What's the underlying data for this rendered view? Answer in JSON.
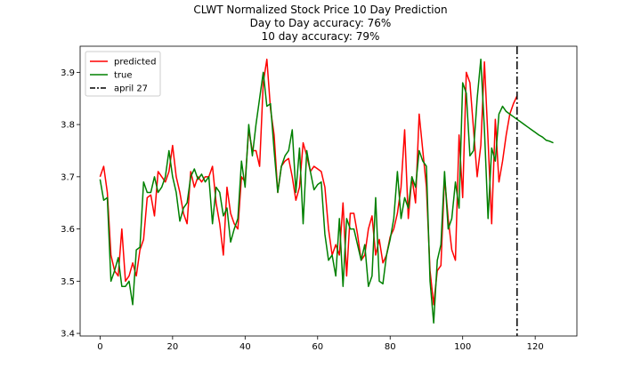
{
  "chart_data": {
    "type": "line",
    "title": "CLWT Normalized Stock Price 10 Day Prediction",
    "subtitle_lines": [
      "Day to Day accuracy: 76%",
      "10 day accuracy: 79%"
    ],
    "xlabel": "",
    "ylabel": "",
    "xlim": [
      -5.5,
      131.5
    ],
    "ylim": [
      3.395,
      3.95
    ],
    "x_ticks": [
      0,
      20,
      40,
      60,
      80,
      100,
      120
    ],
    "y_ticks": [
      3.4,
      3.5,
      3.6,
      3.7,
      3.8,
      3.9
    ],
    "y_tick_labels": [
      "3.4",
      "3.5",
      "3.6",
      "3.7",
      "3.8",
      "3.9"
    ],
    "grid": false,
    "legend_position": "top-left",
    "series": [
      {
        "name": "predicted",
        "color": "#ff0000",
        "x": [
          0,
          1,
          2,
          3,
          4,
          5,
          6,
          7,
          8,
          9,
          10,
          11,
          12,
          13,
          14,
          15,
          16,
          17,
          18,
          19,
          20,
          21,
          22,
          23,
          24,
          25,
          26,
          27,
          28,
          29,
          30,
          31,
          32,
          33,
          34,
          35,
          36,
          37,
          38,
          39,
          40,
          41,
          42,
          43,
          44,
          45,
          46,
          47,
          48,
          49,
          50,
          51,
          52,
          53,
          54,
          55,
          56,
          57,
          58,
          59,
          60,
          61,
          62,
          63,
          64,
          65,
          66,
          67,
          68,
          69,
          70,
          71,
          72,
          73,
          74,
          75,
          76,
          77,
          78,
          79,
          80,
          81,
          82,
          83,
          84,
          85,
          86,
          87,
          88,
          89,
          90,
          91,
          92,
          93,
          94,
          95,
          96,
          97,
          98,
          99,
          100,
          101,
          102,
          103,
          104,
          105,
          106,
          107,
          108,
          109,
          110,
          111,
          112,
          113,
          114,
          115
        ],
        "values": [
          3.7,
          3.72,
          3.67,
          3.55,
          3.52,
          3.51,
          3.6,
          3.5,
          3.51,
          3.535,
          3.51,
          3.56,
          3.58,
          3.66,
          3.665,
          3.625,
          3.71,
          3.7,
          3.69,
          3.71,
          3.76,
          3.7,
          3.67,
          3.63,
          3.61,
          3.71,
          3.68,
          3.7,
          3.69,
          3.7,
          3.7,
          3.72,
          3.65,
          3.61,
          3.55,
          3.68,
          3.63,
          3.61,
          3.6,
          3.7,
          3.69,
          3.79,
          3.75,
          3.75,
          3.72,
          3.88,
          3.925,
          3.83,
          3.78,
          3.67,
          3.72,
          3.73,
          3.735,
          3.7,
          3.655,
          3.68,
          3.765,
          3.74,
          3.71,
          3.72,
          3.715,
          3.71,
          3.68,
          3.6,
          3.55,
          3.57,
          3.55,
          3.65,
          3.51,
          3.63,
          3.63,
          3.59,
          3.54,
          3.55,
          3.6,
          3.625,
          3.55,
          3.58,
          3.535,
          3.55,
          3.585,
          3.6,
          3.63,
          3.68,
          3.79,
          3.62,
          3.7,
          3.65,
          3.82,
          3.75,
          3.68,
          3.52,
          3.455,
          3.52,
          3.53,
          3.7,
          3.62,
          3.56,
          3.54,
          3.78,
          3.66,
          3.9,
          3.88,
          3.79,
          3.7,
          3.76,
          3.92,
          3.77,
          3.61,
          3.81,
          3.69,
          3.73,
          3.78,
          3.82,
          3.84,
          3.855
        ]
      },
      {
        "name": "true",
        "color": "#008000",
        "x": [
          0,
          1,
          2,
          3,
          4,
          5,
          6,
          7,
          8,
          9,
          10,
          11,
          12,
          13,
          14,
          15,
          16,
          17,
          18,
          19,
          20,
          21,
          22,
          23,
          24,
          25,
          26,
          27,
          28,
          29,
          30,
          31,
          32,
          33,
          34,
          35,
          36,
          37,
          38,
          39,
          40,
          41,
          42,
          43,
          44,
          45,
          46,
          47,
          48,
          49,
          50,
          51,
          52,
          53,
          54,
          55,
          56,
          57,
          58,
          59,
          60,
          61,
          62,
          63,
          64,
          65,
          66,
          67,
          68,
          69,
          70,
          71,
          72,
          73,
          74,
          75,
          76,
          77,
          78,
          79,
          80,
          81,
          82,
          83,
          84,
          85,
          86,
          87,
          88,
          89,
          90,
          91,
          92,
          93,
          94,
          95,
          96,
          97,
          98,
          99,
          100,
          101,
          102,
          103,
          104,
          105,
          106,
          107,
          108,
          109,
          110,
          111,
          112,
          113,
          114,
          115,
          116,
          117,
          118,
          119,
          120,
          121,
          122,
          123,
          124,
          125
        ],
        "values": [
          3.695,
          3.655,
          3.66,
          3.5,
          3.52,
          3.545,
          3.49,
          3.49,
          3.5,
          3.455,
          3.56,
          3.565,
          3.69,
          3.67,
          3.67,
          3.7,
          3.67,
          3.68,
          3.7,
          3.75,
          3.7,
          3.67,
          3.615,
          3.64,
          3.65,
          3.7,
          3.715,
          3.695,
          3.705,
          3.69,
          3.7,
          3.61,
          3.68,
          3.67,
          3.625,
          3.64,
          3.575,
          3.6,
          3.62,
          3.73,
          3.68,
          3.8,
          3.74,
          3.8,
          3.85,
          3.9,
          3.835,
          3.84,
          3.75,
          3.67,
          3.72,
          3.74,
          3.75,
          3.79,
          3.67,
          3.755,
          3.61,
          3.75,
          3.71,
          3.675,
          3.685,
          3.69,
          3.59,
          3.54,
          3.55,
          3.51,
          3.62,
          3.49,
          3.62,
          3.6,
          3.6,
          3.57,
          3.54,
          3.57,
          3.49,
          3.51,
          3.66,
          3.5,
          3.495,
          3.55,
          3.58,
          3.62,
          3.71,
          3.62,
          3.66,
          3.64,
          3.7,
          3.68,
          3.75,
          3.73,
          3.72,
          3.5,
          3.42,
          3.54,
          3.57,
          3.71,
          3.6,
          3.62,
          3.69,
          3.64,
          3.88,
          3.86,
          3.74,
          3.75,
          3.85,
          3.925,
          3.79,
          3.62,
          3.755,
          3.73,
          3.82,
          3.835,
          3.825,
          3.82,
          3.815,
          3.81,
          3.805,
          3.8,
          3.795,
          3.79,
          3.785,
          3.78,
          3.776,
          3.77,
          3.768,
          3.765
        ]
      }
    ],
    "vline": {
      "x": 115,
      "label": "april 27",
      "color": "#000000",
      "style": "dashdot"
    }
  }
}
